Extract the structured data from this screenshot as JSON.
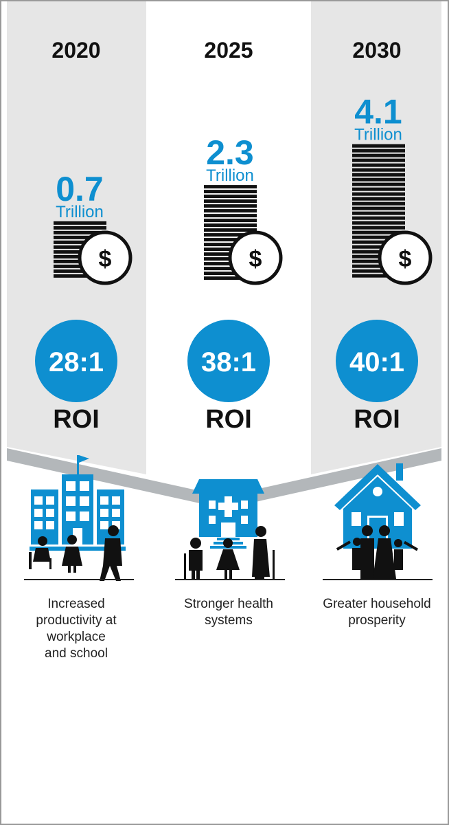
{
  "columns": [
    {
      "year": "2020",
      "amount": 0.7,
      "unit": "Trillion",
      "currency": "$",
      "roi": "28:1",
      "roi_label": "ROI",
      "outcome": [
        "Increased",
        "productivity at",
        "workplace",
        "and school"
      ]
    },
    {
      "year": "2025",
      "amount": 2.3,
      "unit": "Trillion",
      "currency": "$",
      "roi": "38:1",
      "roi_label": "ROI",
      "outcome": [
        "Stronger health",
        "systems"
      ]
    },
    {
      "year": "2030",
      "amount": 4.1,
      "unit": "Trillion",
      "currency": "$",
      "roi": "40:1",
      "roi_label": "ROI",
      "outcome": [
        "Greater household",
        "prosperity"
      ]
    }
  ]
}
